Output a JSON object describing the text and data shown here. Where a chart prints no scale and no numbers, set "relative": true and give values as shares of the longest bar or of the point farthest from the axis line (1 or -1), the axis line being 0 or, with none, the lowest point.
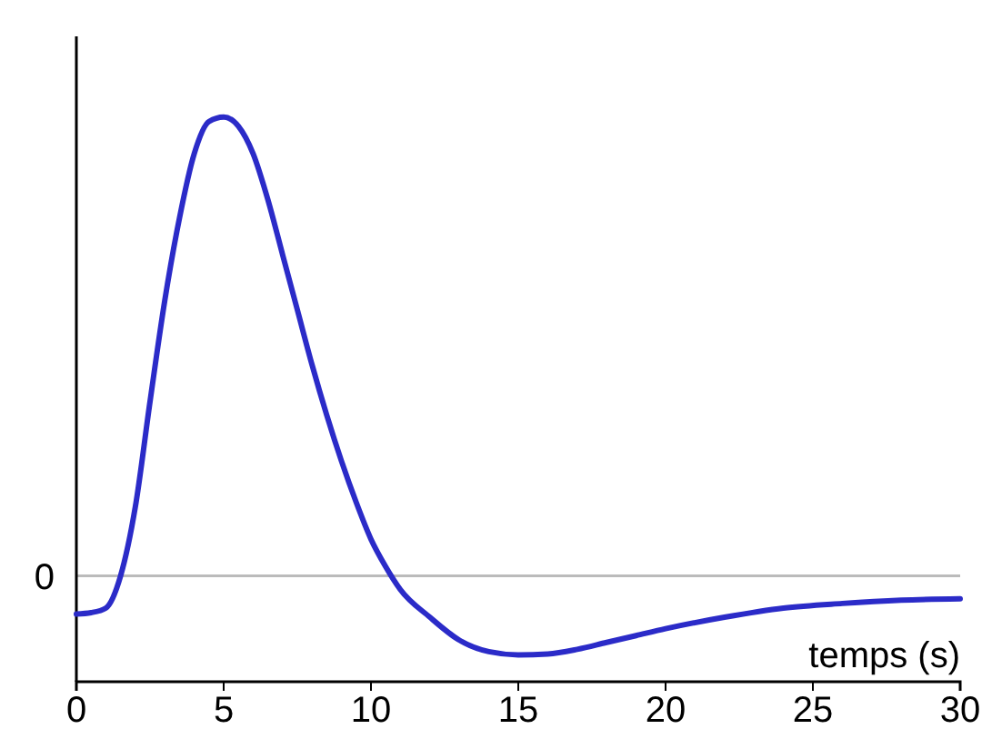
{
  "chart_data": {
    "type": "line",
    "relative": true,
    "xlabel": "temps (s)",
    "xlim": [
      0,
      30
    ],
    "xticks": [
      0,
      5,
      10,
      15,
      20,
      25,
      30
    ],
    "ref_lines": [
      {
        "axis": "y",
        "value": 0,
        "label": "0",
        "color": "#bbbbbb"
      }
    ],
    "x": [
      0,
      0.5,
      1,
      1.5,
      2,
      2.5,
      3,
      3.5,
      4,
      4.5,
      5,
      5.5,
      6,
      6.5,
      7,
      7.5,
      8,
      8.5,
      9,
      9.5,
      10,
      10.5,
      11,
      12,
      13,
      14,
      15,
      16,
      17,
      18,
      19,
      20,
      22,
      24,
      26,
      28,
      30
    ],
    "series": [
      {
        "color": "#2b2bc8",
        "values": [
          -0.083,
          -0.08,
          -0.07,
          0.0,
          0.15,
          0.38,
          0.6,
          0.78,
          0.92,
          0.99,
          1.0,
          0.98,
          0.92,
          0.82,
          0.7,
          0.58,
          0.46,
          0.35,
          0.25,
          0.16,
          0.08,
          0.02,
          -0.03,
          -0.09,
          -0.14,
          -0.165,
          -0.172,
          -0.17,
          -0.16,
          -0.145,
          -0.13,
          -0.115,
          -0.09,
          -0.07,
          -0.06,
          -0.053,
          -0.05
        ]
      }
    ]
  }
}
